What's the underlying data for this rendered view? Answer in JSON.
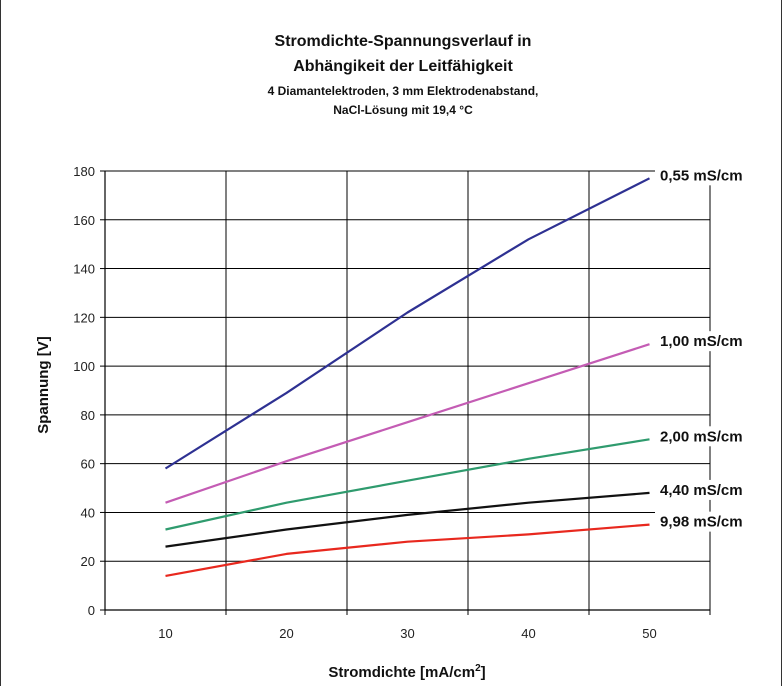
{
  "chart_data": {
    "type": "line",
    "title": "Stromdichte-Spannungsverlauf in",
    "title_line2": "Abhängikeit  der Leitfähigkeit",
    "subtitle": "4 Diamantelektroden, 3 mm Elektrodenabstand,",
    "subtitle_line2": "NaCl-Lösung mit 19,4 °C",
    "xlabel": "Stromdichte [mA/cm",
    "xlabel_superscript": "2",
    "xlabel_suffix": "]",
    "ylabel": "Spannung [V]",
    "x_ticks": [
      "10",
      "20",
      "30",
      "40",
      "50"
    ],
    "y_ticks": [
      "0",
      "20",
      "40",
      "60",
      "80",
      "100",
      "120",
      "140",
      "160",
      "180"
    ],
    "xlim": [
      5,
      55
    ],
    "ylim": [
      0,
      180
    ],
    "grid": true,
    "legend": "inline labels at line ends (right side)",
    "x": [
      10,
      20,
      30,
      40,
      50
    ],
    "series": [
      {
        "name": "0,55 mS/cm",
        "color": "#2e3192",
        "values": [
          58,
          89,
          122,
          152,
          177
        ]
      },
      {
        "name": "1,00 mS/cm",
        "color": "#c45cb4",
        "values": [
          44,
          61,
          77,
          93,
          109
        ]
      },
      {
        "name": "2,00 mS/cm",
        "color": "#2f9b6e",
        "values": [
          33,
          44,
          53,
          62,
          70
        ]
      },
      {
        "name": "4,40 mS/cm",
        "color": "#111111",
        "values": [
          26,
          33,
          39,
          44,
          48
        ]
      },
      {
        "name": "9,98 mS/cm",
        "color": "#e8281e",
        "values": [
          14,
          23,
          28,
          31,
          35
        ]
      }
    ]
  }
}
